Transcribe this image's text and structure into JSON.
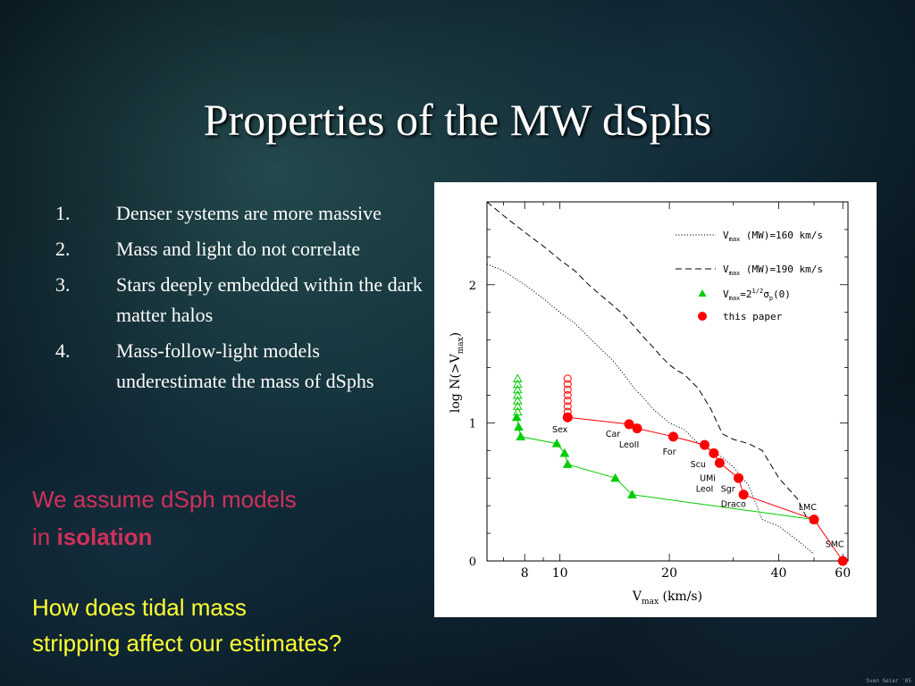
{
  "slide": {
    "title": "Properties of the MW dSphs",
    "points": [
      {
        "num": "1.",
        "text": "Denser systems are more massive"
      },
      {
        "num": "2.",
        "text": "Mass and light do not correlate"
      },
      {
        "num": "3.",
        "text": "Stars deeply embedded within the dark matter halos"
      },
      {
        "num": "4.",
        "text": "Mass-follow-light models underestimate the mass of dSphs"
      }
    ],
    "assumption_line1": "We assume dSph models",
    "assumption_line2_prefix": "in ",
    "assumption_emphasis": "isolation",
    "question_line1": "How does tidal mass",
    "question_line2": "stripping affect our estimates?",
    "watermark": "Sven Geier '05"
  },
  "chart_data": {
    "type": "line",
    "xscale": "log",
    "xlim": [
      6.3,
      62
    ],
    "ylim": [
      0,
      2.6
    ],
    "x_ticks": [
      8,
      10,
      20,
      40,
      60
    ],
    "y_ticks": [
      0,
      1,
      2
    ],
    "xlabel": "V",
    "xlabel_sub": "max",
    "xlabel_suffix": " (km/s)",
    "ylabel": "log N(>V",
    "ylabel_sub": "max",
    "ylabel_suffix": ")",
    "legend_position": "top-right",
    "legend": [
      {
        "style": "dotted",
        "text": "V",
        "sub": "max",
        "rest": " (MW)=160 km/s"
      },
      {
        "style": "dashed",
        "text": "V",
        "sub": "max",
        "rest": " (MW)=190 km/s"
      },
      {
        "style": "green-triangle",
        "text": "V",
        "sub": "max",
        "rest": "=2",
        "sup": "1/2",
        "rest2": "σ",
        "sub2": "p",
        "rest3": "(0)"
      },
      {
        "style": "red-circle",
        "text": "this paper"
      }
    ],
    "colors": {
      "red": "#ff0000",
      "green": "#00cc00",
      "black": "#000000"
    },
    "series": [
      {
        "name": "V_max (MW)=160 km/s",
        "style": "dotted",
        "x": [
          6.3,
          7.0,
          8.0,
          9.0,
          10.0,
          11.0,
          12.0,
          13.0,
          14.0,
          15.0,
          16.0,
          17.0,
          18.0,
          19.0,
          20.0,
          22.0,
          24.0,
          26.0,
          28.0,
          30.0,
          33.0,
          36.0,
          40.0,
          45.0,
          50.0
        ],
        "y": [
          2.15,
          2.1,
          2.0,
          1.9,
          1.8,
          1.72,
          1.62,
          1.53,
          1.45,
          1.35,
          1.25,
          1.18,
          1.1,
          1.05,
          1.0,
          0.95,
          0.85,
          0.8,
          0.75,
          0.68,
          0.55,
          0.3,
          0.25,
          0.15,
          0.05
        ]
      },
      {
        "name": "V_max (MW)=190 km/s",
        "style": "dashed",
        "x": [
          6.3,
          7.0,
          8.0,
          9.0,
          10.0,
          11.0,
          12.0,
          13.0,
          14.0,
          15.0,
          16.0,
          17.0,
          18.0,
          19.0,
          20.0,
          21.0,
          22.0,
          24.0,
          26.0,
          28.0,
          30.0,
          33.0,
          36.0,
          40.0,
          45.0,
          48.0
        ],
        "y": [
          2.6,
          2.5,
          2.38,
          2.28,
          2.18,
          2.1,
          2.0,
          1.92,
          1.85,
          1.78,
          1.7,
          1.62,
          1.55,
          1.48,
          1.42,
          1.38,
          1.35,
          1.25,
          1.1,
          0.92,
          0.88,
          0.85,
          0.8,
          0.6,
          0.45,
          0.3
        ]
      },
      {
        "name": "V_max=2^(1/2) σ_p(0)",
        "style": "green",
        "x": [
          7.6,
          7.7,
          7.8,
          9.8,
          10.3,
          10.5,
          14.2,
          15.8,
          50.0
        ],
        "y": [
          1.04,
          0.97,
          0.9,
          0.85,
          0.78,
          0.7,
          0.6,
          0.48,
          0.3
        ]
      },
      {
        "name": "this paper",
        "style": "red",
        "x": [
          10.5,
          15.5,
          16.3,
          20.5,
          25.0,
          26.5,
          27.5,
          31.0,
          32.0,
          50.0,
          60.0
        ],
        "y": [
          1.04,
          0.99,
          0.96,
          0.9,
          0.84,
          0.78,
          0.71,
          0.6,
          0.48,
          0.3,
          0.0
        ]
      }
    ],
    "upper_markers": [
      {
        "series": "green",
        "x": 7.65,
        "y": [
          1.08,
          1.12,
          1.16,
          1.2,
          1.24,
          1.28,
          1.32
        ]
      },
      {
        "series": "red",
        "x": 10.5,
        "y": [
          1.08,
          1.12,
          1.16,
          1.2,
          1.24,
          1.28,
          1.32
        ]
      }
    ],
    "labels": [
      {
        "text": "Sex",
        "x": 10.0,
        "y": 0.93
      },
      {
        "text": "Car",
        "x": 14.0,
        "y": 0.9
      },
      {
        "text": "LeoII",
        "x": 15.5,
        "y": 0.82
      },
      {
        "text": "For",
        "x": 20.0,
        "y": 0.77
      },
      {
        "text": "Scu",
        "x": 24.0,
        "y": 0.68
      },
      {
        "text": "UMi",
        "x": 25.5,
        "y": 0.58
      },
      {
        "text": "LeoI",
        "x": 25.0,
        "y": 0.5
      },
      {
        "text": "Sgr",
        "x": 29.0,
        "y": 0.5
      },
      {
        "text": "Draco",
        "x": 30.0,
        "y": 0.39
      },
      {
        "text": "LMC",
        "x": 48.0,
        "y": 0.37
      },
      {
        "text": "SMC",
        "x": 57.0,
        "y": 0.1
      }
    ]
  }
}
